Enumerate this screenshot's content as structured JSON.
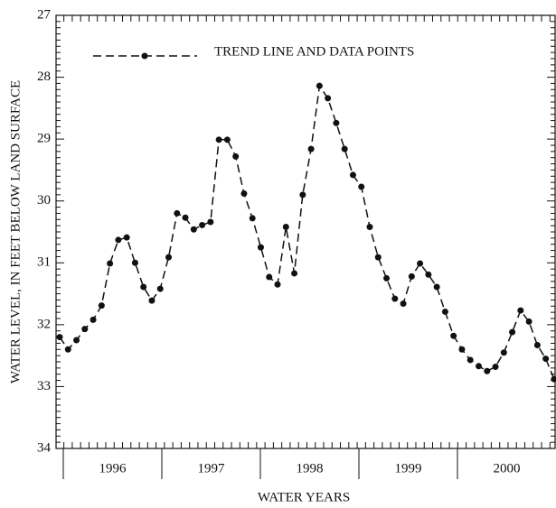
{
  "chart_data": {
    "type": "line",
    "y_label": "WATER LEVEL, IN FEET BELOW LAND SURFACE",
    "x_label": "WATER YEARS",
    "legend": "TREND LINE AND DATA POINTS",
    "year_labels": [
      "1996",
      "1997",
      "1998",
      "1999",
      "2000"
    ],
    "categories": [
      null,
      null,
      null,
      null,
      null,
      null,
      null,
      null,
      null,
      null,
      null,
      null,
      null,
      null,
      null,
      null,
      null,
      null,
      null,
      null,
      null,
      null,
      null,
      null,
      null,
      null,
      null,
      null,
      null,
      null,
      null,
      null,
      null,
      null,
      null,
      null,
      null,
      null,
      null,
      null,
      null,
      null,
      null,
      null,
      null,
      null,
      null,
      null,
      null,
      null,
      null,
      null,
      null,
      null,
      null,
      null,
      null,
      null,
      null,
      null
    ],
    "values": [
      32.2,
      32.4,
      32.25,
      32.07,
      31.92,
      31.69,
      31.01,
      30.63,
      30.59,
      31.0,
      31.39,
      31.61,
      31.42,
      30.91,
      30.2,
      30.27,
      30.46,
      30.39,
      30.34,
      29.01,
      29.01,
      29.28,
      29.88,
      30.28,
      30.75,
      31.23,
      31.35,
      30.42,
      31.17,
      29.9,
      29.16,
      28.14,
      28.34,
      28.74,
      29.16,
      29.58,
      29.77,
      30.42,
      30.91,
      31.25,
      31.58,
      31.66,
      31.22,
      31.01,
      31.19,
      31.39,
      31.79,
      32.18,
      32.4,
      32.57,
      32.67,
      32.75,
      32.68,
      32.45,
      32.12,
      31.77,
      31.95,
      32.33,
      32.55,
      32.88
    ],
    "color": "#111111",
    "ylim": [
      27,
      34
    ],
    "yticks": [
      27,
      28,
      29,
      30,
      31,
      32,
      33,
      34
    ],
    "y_inverted": true
  }
}
